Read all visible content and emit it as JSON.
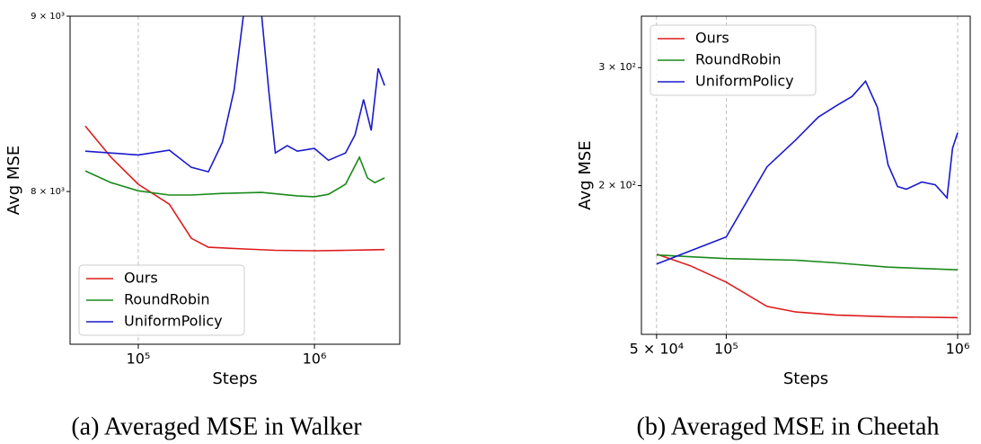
{
  "chart_data": [
    {
      "type": "line",
      "caption": "(a) Averaged MSE in Walker",
      "xlabel": "Steps",
      "ylabel": "Avg MSE",
      "log_x": true,
      "log_y": true,
      "grid": "x",
      "legend": "lower left",
      "xlim": [
        41000,
        3050000
      ],
      "ylim": [
        7220,
        9000
      ],
      "xticks": [
        {
          "value": 100000,
          "label": "10⁵"
        },
        {
          "value": 1000000,
          "label": "10⁶"
        }
      ],
      "yticks": [
        {
          "value": 8000,
          "label": "8 × 10³"
        },
        {
          "value": 9000,
          "label": "9 × 10³"
        }
      ],
      "series": [
        {
          "name": "Ours",
          "color": "#dd1c1c",
          "x": [
            50000,
            70000,
            100000,
            150000,
            200000,
            250000,
            400000,
            600000,
            1000000,
            1500000,
            2000000,
            2500000
          ],
          "values": [
            8360,
            8186,
            8039,
            7932,
            7752,
            7706,
            7697,
            7690,
            7688,
            7690,
            7692,
            7694
          ]
        },
        {
          "name": "RoundRobin",
          "color": "#1a8a1a",
          "x": [
            50000,
            70000,
            100000,
            150000,
            200000,
            300000,
            500000,
            800000,
            1000000,
            1200000,
            1500000,
            1800000,
            2000000,
            2200000,
            2500000
          ],
          "values": [
            8112,
            8048,
            8004,
            7981,
            7981,
            7990,
            7995,
            7977,
            7972,
            7985,
            8039,
            8186,
            8073,
            8048,
            8073
          ]
        },
        {
          "name": "UniformPolicy",
          "color": "#1a1acc",
          "x": [
            50000,
            100000,
            150000,
            200000,
            250000,
            300000,
            350000,
            400000,
            500000,
            550000,
            600000,
            700000,
            800000,
            1000000,
            1200000,
            1500000,
            1700000,
            1900000,
            2100000,
            2300000,
            2500000
          ],
          "values": [
            8220,
            8199,
            8225,
            8131,
            8107,
            8268,
            8565,
            9050,
            9020,
            8565,
            8210,
            8250,
            8220,
            8235,
            8170,
            8210,
            8310,
            8510,
            8335,
            8690,
            8590
          ]
        }
      ]
    },
    {
      "type": "line",
      "caption": "(b) Averaged MSE in Cheetah",
      "xlabel": "Steps",
      "ylabel": "Avg MSE",
      "log_x": true,
      "log_y": true,
      "grid": "x",
      "legend": "upper left",
      "xlim": [
        43000,
        1133000
      ],
      "ylim": [
        120,
        358
      ],
      "xticks": [
        {
          "value": 50000,
          "label": "5 × 10⁴"
        },
        {
          "value": 100000,
          "label": "10⁵"
        },
        {
          "value": 1000000,
          "label": "10⁶"
        }
      ],
      "yticks": [
        {
          "value": 200,
          "label": "2 × 10²"
        },
        {
          "value": 300,
          "label": "3 × 10²"
        }
      ],
      "series": [
        {
          "name": "Ours",
          "color": "#dd1c1c",
          "x": [
            50000,
            70000,
            100000,
            150000,
            200000,
            300000,
            500000,
            1000000
          ],
          "values": [
            158.1,
            151.9,
            143.6,
            132.1,
            129.6,
            128.2,
            127.5,
            127.1
          ]
        },
        {
          "name": "RoundRobin",
          "color": "#1a8a1a",
          "x": [
            50000,
            100000,
            200000,
            300000,
            500000,
            1000000
          ],
          "values": [
            157.6,
            155.7,
            154.8,
            153.4,
            151.2,
            149.8
          ]
        },
        {
          "name": "UniformPolicy",
          "color": "#1a1acc",
          "x": [
            50000,
            100000,
            150000,
            200000,
            250000,
            300000,
            350000,
            400000,
            450000,
            500000,
            550000,
            600000,
            700000,
            800000,
            900000,
            950000,
            1000000
          ],
          "values": [
            152.8,
            167.7,
            213.4,
            234.2,
            253.1,
            263.4,
            271.8,
            286.4,
            261.7,
            215.0,
            199.4,
            197.6,
            202.5,
            200.6,
            191.8,
            227.3,
            239.8
          ]
        }
      ]
    }
  ]
}
